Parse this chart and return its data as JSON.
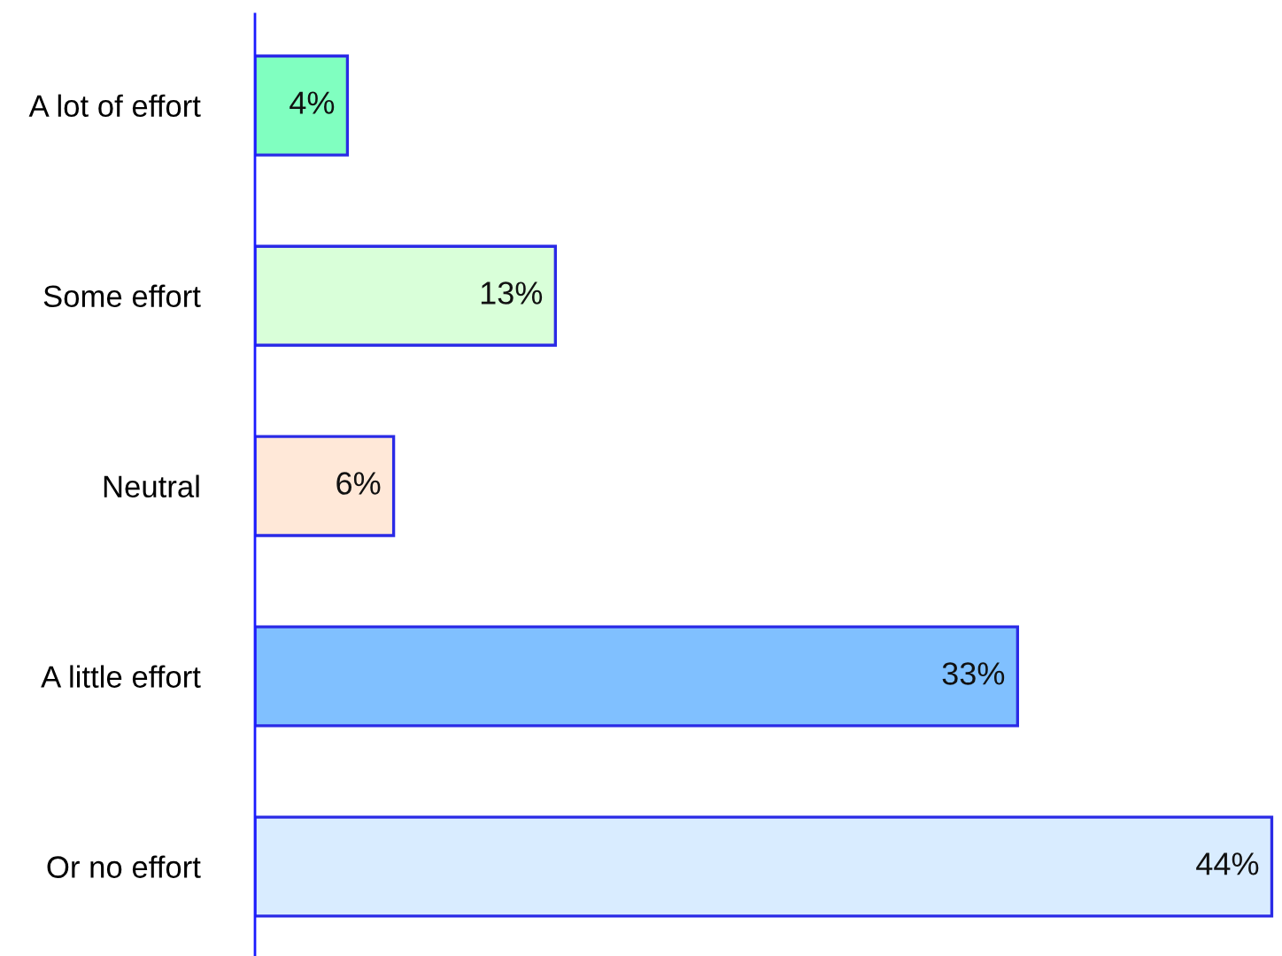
{
  "chart_data": {
    "type": "bar",
    "orientation": "horizontal",
    "categories": [
      "A lot of effort",
      "Some effort",
      "Neutral",
      "A little effort",
      "Or no effort"
    ],
    "values": [
      4,
      13,
      6,
      33,
      44
    ],
    "colors": [
      "#80ffc0",
      "#d9ffd9",
      "#ffe8d8",
      "#80c0ff",
      "#d9ecff"
    ],
    "value_labels": [
      "4%",
      "13%",
      "6%",
      "33%",
      "44%"
    ],
    "tick_labels": "y"
  }
}
